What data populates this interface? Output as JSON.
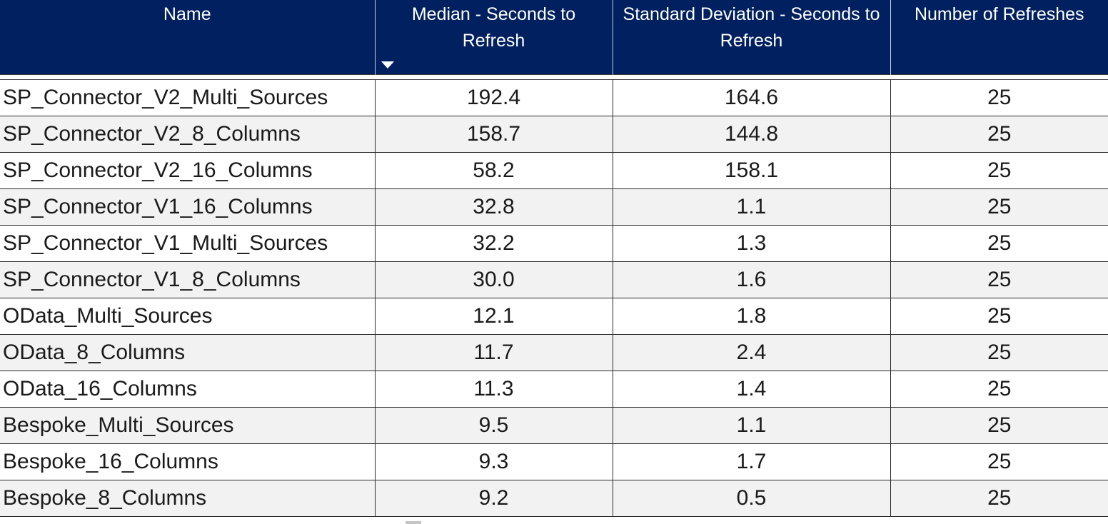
{
  "table": {
    "columns": [
      {
        "label": "Name"
      },
      {
        "label": "Median - Seconds to Refresh",
        "sorted": "descending"
      },
      {
        "label": "Standard Deviation - Seconds to Refresh"
      },
      {
        "label": "Number of Refreshes"
      }
    ],
    "header_color": "#002060",
    "rows": [
      {
        "name": "SP_Connector_V2_Multi_Sources",
        "median": "192.4",
        "std": "164.6",
        "count": "25"
      },
      {
        "name": "SP_Connector_V2_8_Columns",
        "median": "158.7",
        "std": "144.8",
        "count": "25"
      },
      {
        "name": "SP_Connector_V2_16_Columns",
        "median": "58.2",
        "std": "158.1",
        "count": "25"
      },
      {
        "name": "SP_Connector_V1_16_Columns",
        "median": "32.8",
        "std": "1.1",
        "count": "25"
      },
      {
        "name": "SP_Connector_V1_Multi_Sources",
        "median": "32.2",
        "std": "1.3",
        "count": "25"
      },
      {
        "name": "SP_Connector_V1_8_Columns",
        "median": "30.0",
        "std": "1.6",
        "count": "25"
      },
      {
        "name": "OData_Multi_Sources",
        "median": "12.1",
        "std": "1.8",
        "count": "25"
      },
      {
        "name": "OData_8_Columns",
        "median": "11.7",
        "std": "2.4",
        "count": "25"
      },
      {
        "name": "OData_16_Columns",
        "median": "11.3",
        "std": "1.4",
        "count": "25"
      },
      {
        "name": "Bespoke_Multi_Sources",
        "median": "9.5",
        "std": "1.1",
        "count": "25"
      },
      {
        "name": "Bespoke_16_Columns",
        "median": "9.3",
        "std": "1.7",
        "count": "25"
      },
      {
        "name": "Bespoke_8_Columns",
        "median": "9.2",
        "std": "0.5",
        "count": "25"
      }
    ]
  }
}
